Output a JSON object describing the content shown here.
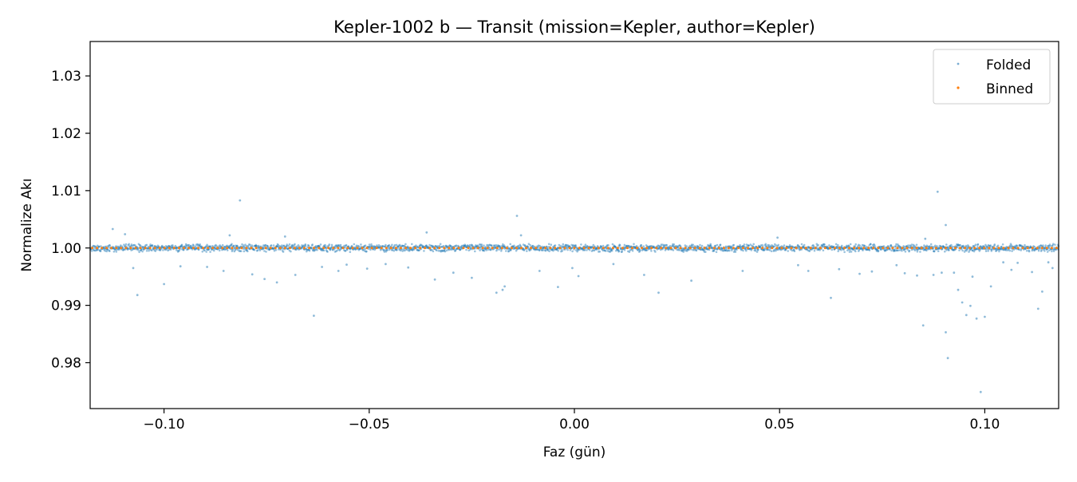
{
  "chart_data": {
    "type": "scatter",
    "title": "Kepler-1002 b — Transit (mission=Kepler, author=Kepler)",
    "xlabel": "Faz (gün)",
    "ylabel": "Normalize Akı",
    "xlim": [
      -0.118,
      0.118
    ],
    "ylim": [
      0.972,
      1.036
    ],
    "xticks": [
      -0.1,
      -0.05,
      0.0,
      0.05,
      0.1
    ],
    "xtick_labels": [
      "−0.10",
      "−0.05",
      "0.00",
      "0.05",
      "0.10"
    ],
    "yticks": [
      0.98,
      0.99,
      1.0,
      1.01,
      1.02,
      1.03
    ],
    "ytick_labels": [
      "0.98",
      "0.99",
      "1.00",
      "1.01",
      "1.02",
      "1.03"
    ],
    "grid": false,
    "legend_position": "top-right",
    "series": [
      {
        "name": "Folded",
        "color": "#1f77b4",
        "marker": "dot",
        "band": {
          "center": 1.0,
          "half_width": 0.0007
        },
        "outliers": [
          [
            -0.1125,
            1.0033
          ],
          [
            -0.1095,
            1.0024
          ],
          [
            -0.1065,
            0.9918
          ],
          [
            -0.1075,
            0.9965
          ],
          [
            -0.1,
            0.9937
          ],
          [
            -0.096,
            0.9968
          ],
          [
            -0.0895,
            0.9967
          ],
          [
            -0.0855,
            0.996
          ],
          [
            -0.084,
            1.0022
          ],
          [
            -0.0815,
            1.0083
          ],
          [
            -0.0785,
            0.9954
          ],
          [
            -0.0755,
            0.9946
          ],
          [
            -0.0725,
            0.994
          ],
          [
            -0.0705,
            1.002
          ],
          [
            -0.068,
            0.9953
          ],
          [
            -0.0635,
            0.9882
          ],
          [
            -0.0615,
            0.9967
          ],
          [
            -0.0575,
            0.996
          ],
          [
            -0.0555,
            0.9971
          ],
          [
            -0.0505,
            0.9964
          ],
          [
            -0.046,
            0.9972
          ],
          [
            -0.0405,
            0.9966
          ],
          [
            -0.036,
            1.0027
          ],
          [
            -0.034,
            0.9945
          ],
          [
            -0.0295,
            0.9957
          ],
          [
            -0.025,
            0.9948
          ],
          [
            -0.019,
            0.9922
          ],
          [
            -0.0175,
            0.9927
          ],
          [
            -0.017,
            0.9933
          ],
          [
            -0.014,
            1.0056
          ],
          [
            -0.013,
            1.0022
          ],
          [
            -0.0085,
            0.996
          ],
          [
            -0.004,
            0.9932
          ],
          [
            -0.0005,
            0.9965
          ],
          [
            0.001,
            0.9951
          ],
          [
            0.0095,
            0.9972
          ],
          [
            0.017,
            0.9953
          ],
          [
            0.0205,
            0.9922
          ],
          [
            0.0285,
            0.9943
          ],
          [
            0.041,
            0.996
          ],
          [
            0.0495,
            1.0018
          ],
          [
            0.0545,
            0.997
          ],
          [
            0.057,
            0.996
          ],
          [
            0.0625,
            0.9913
          ],
          [
            0.0645,
            0.9963
          ],
          [
            0.0695,
            0.9955
          ],
          [
            0.0725,
            0.9959
          ],
          [
            0.0785,
            0.997
          ],
          [
            0.0805,
            0.9956
          ],
          [
            0.0835,
            0.9952
          ],
          [
            0.085,
            0.9865
          ],
          [
            0.0855,
            1.0016
          ],
          [
            0.0875,
            0.9953
          ],
          [
            0.0885,
            1.0098
          ],
          [
            0.0895,
            0.9957
          ],
          [
            0.0905,
            0.9853
          ],
          [
            0.0905,
            1.004
          ],
          [
            0.091,
            0.9808
          ],
          [
            0.0925,
            0.9957
          ],
          [
            0.0935,
            0.9927
          ],
          [
            0.0945,
            0.9905
          ],
          [
            0.0955,
            0.9883
          ],
          [
            0.0965,
            0.9899
          ],
          [
            0.097,
            0.995
          ],
          [
            0.098,
            0.9877
          ],
          [
            0.099,
            0.9749
          ],
          [
            0.1,
            0.988
          ],
          [
            0.1015,
            0.9933
          ],
          [
            0.1045,
            0.9975
          ],
          [
            0.1065,
            0.9962
          ],
          [
            0.108,
            0.9974
          ],
          [
            0.1115,
            0.9958
          ],
          [
            0.113,
            0.9894
          ],
          [
            0.114,
            0.9924
          ],
          [
            0.1155,
            0.9975
          ],
          [
            0.1165,
            0.9965
          ]
        ]
      },
      {
        "name": "Binned",
        "color": "#ff7f0e",
        "marker": "dot",
        "x_start": -0.1175,
        "x_end": 0.1175,
        "bin_count": 201,
        "y": 1.0
      }
    ]
  }
}
